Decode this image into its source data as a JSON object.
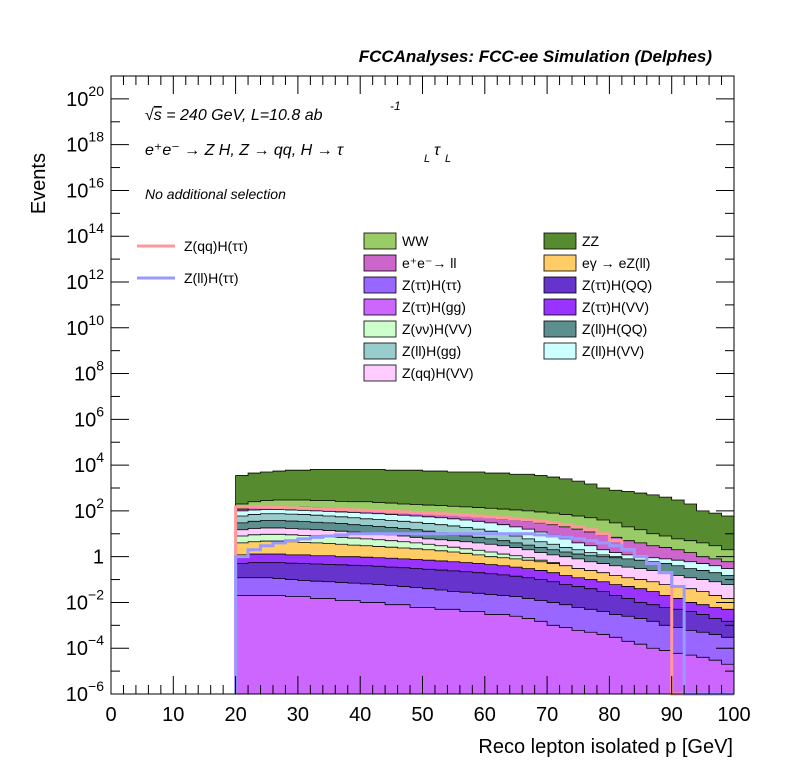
{
  "header": {
    "title": "FCCAnalyses: FCC-ee Simulation (Delphes)"
  },
  "annotations": {
    "sqrt_s": "s",
    "energy_lumi": " = 240 GeV, L=10.8 ab",
    "lumi_exponent": "-1",
    "process_line": "e⁺e⁻ → Z H, Z  → qq, H  → τ",
    "tau_sub_1": "L",
    "tau_sub_2": "L",
    "tau_mid": "τ",
    "selection": "No additional selection"
  },
  "colors": {
    "WW": "#99cc66",
    "ZZ": "#568b30",
    "ee_ll": "#cc66cc",
    "egamma_eZll": "#ffcc66",
    "Ztautau_Htautau": "#9966ff",
    "Ztautau_HQQ": "#6633cc",
    "Ztautau_Hgg": "#cc66ff",
    "Ztautau_HVV": "#9933ff",
    "Znunu_HVV": "#ccffcc",
    "Zll_HQQ": "#5e8f8f",
    "Zll_Hgg": "#99cccc",
    "Zll_HVV": "#ccffff",
    "Zqq_HVV": "#ffccff",
    "signal_qq": "#ff9999",
    "signal_ll": "#9999ff"
  },
  "chart_data": {
    "type": "area",
    "title": "",
    "xlabel": "Reco lepton isolated p [GeV]",
    "ylabel": "Events",
    "xlim": [
      0,
      100
    ],
    "ylim": [
      1e-06,
      1e+21
    ],
    "yscale": "log",
    "grid": false,
    "legend_position": "top",
    "xticks": [
      0,
      10,
      20,
      30,
      40,
      50,
      60,
      70,
      80,
      90,
      100
    ],
    "yticks": [
      {
        "mantissa": "10",
        "exp": "−6",
        "value": 1e-06
      },
      {
        "mantissa": "10",
        "exp": "−4",
        "value": 0.0001
      },
      {
        "mantissa": "10",
        "exp": "−2",
        "value": 0.01
      },
      {
        "mantissa": "1",
        "exp": "",
        "value": 1
      },
      {
        "mantissa": "10",
        "exp": "2",
        "value": 100.0
      },
      {
        "mantissa": "10",
        "exp": "4",
        "value": 10000.0
      },
      {
        "mantissa": "10",
        "exp": "6",
        "value": 1000000.0
      },
      {
        "mantissa": "10",
        "exp": "8",
        "value": 100000000.0
      },
      {
        "mantissa": "10",
        "exp": "10",
        "value": 10000000000.0
      },
      {
        "mantissa": "10",
        "exp": "12",
        "value": 1000000000000.0
      },
      {
        "mantissa": "10",
        "exp": "14",
        "value": 100000000000000.0
      },
      {
        "mantissa": "10",
        "exp": "16",
        "value": 1e+16
      },
      {
        "mantissa": "10",
        "exp": "18",
        "value": 1e+18
      },
      {
        "mantissa": "10",
        "exp": "20",
        "value": 1e+20
      }
    ],
    "bin_edges_start": 20,
    "bin_width": 2,
    "stack_tops": [
      {
        "key": "ZZ",
        "name": "ZZ",
        "tops": [
          3500,
          4500,
          5000,
          5500,
          6000,
          6000,
          6500,
          6500,
          6500,
          6500,
          6500,
          6500,
          6000,
          6000,
          6000,
          5500,
          5500,
          5000,
          5000,
          5000,
          4500,
          4500,
          4000,
          4000,
          3500,
          3000,
          2500,
          2000,
          1500,
          1000,
          800,
          700,
          600,
          500,
          400,
          300,
          200,
          100,
          80,
          60
        ]
      },
      {
        "key": "WW",
        "name": "WW",
        "tops": [
          200,
          250,
          280,
          300,
          300,
          300,
          280,
          280,
          260,
          250,
          250,
          230,
          220,
          200,
          190,
          180,
          170,
          160,
          150,
          140,
          130,
          120,
          110,
          100,
          90,
          80,
          70,
          60,
          50,
          40,
          30,
          20,
          15,
          10,
          8,
          6,
          5,
          4,
          3,
          2
        ]
      },
      {
        "key": "ee_ll",
        "name": "e⁺e⁻→ ll",
        "tops": [
          120,
          140,
          150,
          150,
          150,
          145,
          140,
          130,
          120,
          110,
          100,
          95,
          90,
          85,
          80,
          75,
          70,
          65,
          60,
          55,
          50,
          45,
          40,
          35,
          30,
          25,
          20,
          16,
          12,
          9,
          7,
          5,
          4,
          3,
          2.5,
          2,
          1.5,
          1,
          0.8,
          0.6
        ]
      },
      {
        "key": "Zll_HVV",
        "name": "Z(ll)H(VV)",
        "tops": [
          100,
          110,
          115,
          115,
          110,
          105,
          100,
          95,
          90,
          85,
          80,
          75,
          70,
          65,
          60,
          55,
          50,
          45,
          40,
          35,
          30,
          25,
          20,
          16,
          12,
          9,
          6,
          4,
          3,
          2,
          1.5,
          1.2,
          1,
          0.9,
          0.8,
          0.7,
          0.6,
          0.5,
          0.4,
          0.3
        ]
      },
      {
        "key": "Zll_Hgg",
        "name": "Z(ll)H(gg)",
        "tops": [
          60,
          70,
          75,
          75,
          72,
          70,
          65,
          60,
          55,
          50,
          45,
          42,
          38,
          35,
          32,
          28,
          25,
          22,
          19,
          16,
          13,
          10,
          8,
          6,
          4.5,
          3.5,
          2.5,
          2,
          1.5,
          1.2,
          1,
          0.8,
          0.6,
          0.5,
          0.4,
          0.3,
          0.25,
          0.2,
          0.15,
          0.1
        ]
      },
      {
        "key": "Zll_HQQ",
        "name": "Z(ll)H(QQ)",
        "tops": [
          30,
          35,
          38,
          38,
          36,
          34,
          32,
          30,
          28,
          25,
          23,
          21,
          19,
          17,
          15,
          13,
          11,
          9,
          8,
          7,
          6,
          5,
          4,
          3.2,
          2.5,
          2,
          1.6,
          1.3,
          1.1,
          1,
          0.9,
          0.8,
          0.7,
          0.6,
          0.5,
          0.4,
          0.3,
          0.25,
          0.2,
          0.15
        ]
      },
      {
        "key": "Zqq_HVV",
        "name": "Z(qq)H(VV)",
        "tops": [
          15,
          17,
          18,
          18,
          17,
          16,
          15,
          14,
          13,
          12,
          11,
          10,
          9,
          8,
          7,
          6,
          5.5,
          5,
          4.5,
          4,
          3.5,
          3,
          2.5,
          2,
          1.5,
          1.2,
          1,
          0.8,
          0.6,
          0.5,
          0.4,
          0.35,
          0.3,
          0.25,
          0.2,
          0.15,
          0.12,
          0.1,
          0.08,
          0.06
        ]
      },
      {
        "key": "Znunu_HVV",
        "name": "Z(νν)H(VV)",
        "tops": [
          8,
          9,
          9.5,
          9.5,
          9,
          8.5,
          8,
          7.5,
          7,
          6.5,
          6,
          5.5,
          5,
          4.5,
          4,
          3.5,
          3,
          2.6,
          2.2,
          1.9,
          1.6,
          1.3,
          1.1,
          0.9,
          0.7,
          0.55,
          0.4,
          0.3,
          0.2,
          0.15,
          0.1,
          0.08,
          0.06,
          0.05,
          0.04,
          0.03,
          0.02,
          0.015,
          0.01,
          0.008
        ]
      },
      {
        "key": "egamma_eZll",
        "name": "eγ → eZ(ll)",
        "tops": [
          4,
          4.5,
          4.8,
          4.8,
          4.5,
          4.2,
          4,
          3.8,
          3.5,
          3.2,
          3,
          2.8,
          2.6,
          2.4,
          2.2,
          2,
          1.8,
          1.6,
          1.4,
          1.2,
          1,
          0.9,
          0.8,
          0.7,
          0.6,
          0.5,
          0.4,
          0.3,
          0.25,
          0.2,
          0.15,
          0.12,
          0.1,
          0.08,
          0.06,
          0.05,
          0.04,
          0.03,
          0.02,
          0.015
        ]
      },
      {
        "key": "Ztautau_HVV",
        "name": "Z(ττ)H(VV)",
        "tops": [
          1.2,
          1.3,
          1.3,
          1.3,
          1.2,
          1.2,
          1.1,
          1.1,
          1,
          1,
          0.95,
          0.9,
          0.85,
          0.8,
          0.75,
          0.7,
          0.65,
          0.6,
          0.55,
          0.5,
          0.45,
          0.4,
          0.35,
          0.3,
          0.25,
          0.2,
          0.15,
          0.12,
          0.1,
          0.08,
          0.06,
          0.05,
          0.04,
          0.03,
          0.02,
          0.015,
          0.01,
          0.008,
          0.006,
          0.005
        ]
      },
      {
        "key": "Ztautau_HQQ",
        "name": "Z(ττ)H(QQ)",
        "tops": [
          0.5,
          0.55,
          0.55,
          0.55,
          0.52,
          0.5,
          0.48,
          0.46,
          0.44,
          0.42,
          0.4,
          0.38,
          0.35,
          0.33,
          0.3,
          0.28,
          0.26,
          0.24,
          0.22,
          0.2,
          0.18,
          0.16,
          0.14,
          0.12,
          0.1,
          0.08,
          0.06,
          0.05,
          0.04,
          0.03,
          0.02,
          0.015,
          0.01,
          0.008,
          0.006,
          0.005,
          0.004,
          0.003,
          0.002,
          0.0015
        ]
      },
      {
        "key": "Ztautau_Htautau",
        "name": "Z(ττ)H(ττ)",
        "tops": [
          0.12,
          0.12,
          0.12,
          0.11,
          0.1,
          0.09,
          0.085,
          0.08,
          0.075,
          0.07,
          0.065,
          0.06,
          0.055,
          0.05,
          0.045,
          0.04,
          0.035,
          0.03,
          0.028,
          0.025,
          0.022,
          0.02,
          0.018,
          0.015,
          0.012,
          0.01,
          0.008,
          0.006,
          0.005,
          0.004,
          0.003,
          0.0025,
          0.002,
          0.0015,
          0.001,
          0.0008,
          0.0006,
          0.0005,
          0.0004,
          0.0003
        ]
      },
      {
        "key": "Ztautau_Hgg",
        "name": "Z(ττ)H(gg)",
        "tops": [
          0.02,
          0.02,
          0.02,
          0.02,
          0.018,
          0.018,
          0.015,
          0.015,
          0.012,
          0.012,
          0.01,
          0.01,
          0.008,
          0.008,
          0.006,
          0.006,
          0.005,
          0.005,
          0.004,
          0.004,
          0.003,
          0.003,
          0.0025,
          0.002,
          0.0015,
          0.001,
          0.0008,
          0.0006,
          0.0005,
          0.0004,
          0.0003,
          0.0002,
          0.00015,
          0.0001,
          8e-05,
          6e-05,
          5e-05,
          4e-05,
          3e-05,
          2e-05
        ]
      }
    ],
    "signals": [
      {
        "key": "signal_qq",
        "name": "Z(qq)H(ττ)",
        "values": [
          150,
          150,
          145,
          140,
          135,
          130,
          125,
          120,
          115,
          110,
          105,
          100,
          95,
          90,
          85,
          80,
          75,
          70,
          65,
          60,
          55,
          50,
          45,
          40,
          35,
          30,
          25,
          20,
          15,
          10,
          5,
          2,
          1,
          0.5,
          0.2,
          1e-09,
          1e-09,
          1e-09,
          1e-09,
          1e-09
        ]
      },
      {
        "key": "signal_ll",
        "name": "Z(ll)H(ττ)",
        "values": [
          1,
          2,
          3,
          4,
          5,
          6,
          7,
          8,
          9,
          10,
          10,
          10,
          10,
          10,
          10,
          10,
          10,
          10,
          10,
          10,
          10,
          10,
          10,
          10,
          9,
          8,
          7,
          6,
          5,
          4,
          3,
          2,
          1,
          0.5,
          0.2,
          0.05,
          1e-09,
          1e-09,
          1e-09,
          1e-09
        ]
      }
    ],
    "legend_left": [
      {
        "key": "signal_qq",
        "name": "Z(qq)H(ττ)"
      },
      {
        "key": "signal_ll",
        "name": "Z(ll)H(ττ)"
      }
    ],
    "legend_col1": [
      {
        "key": "WW",
        "name": "WW"
      },
      {
        "key": "ee_ll",
        "name": "e⁺e⁻→ ll"
      },
      {
        "key": "Ztautau_Htautau",
        "name": "Z(ττ)H(ττ)"
      },
      {
        "key": "Ztautau_Hgg",
        "name": "Z(ττ)H(gg)"
      },
      {
        "key": "Znunu_HVV",
        "name": "Z(νν)H(VV)"
      },
      {
        "key": "Zll_Hgg",
        "name": "Z(ll)H(gg)"
      },
      {
        "key": "Zqq_HVV",
        "name": "Z(qq)H(VV)"
      }
    ],
    "legend_col2": [
      {
        "key": "ZZ",
        "name": "ZZ"
      },
      {
        "key": "egamma_eZll",
        "name": "eγ → eZ(ll)"
      },
      {
        "key": "Ztautau_HQQ",
        "name": "Z(ττ)H(QQ)"
      },
      {
        "key": "Ztautau_HVV",
        "name": "Z(ττ)H(VV)"
      },
      {
        "key": "Zll_HQQ",
        "name": "Z(ll)H(QQ)"
      },
      {
        "key": "Zll_HVV",
        "name": "Z(ll)H(VV)"
      }
    ]
  }
}
